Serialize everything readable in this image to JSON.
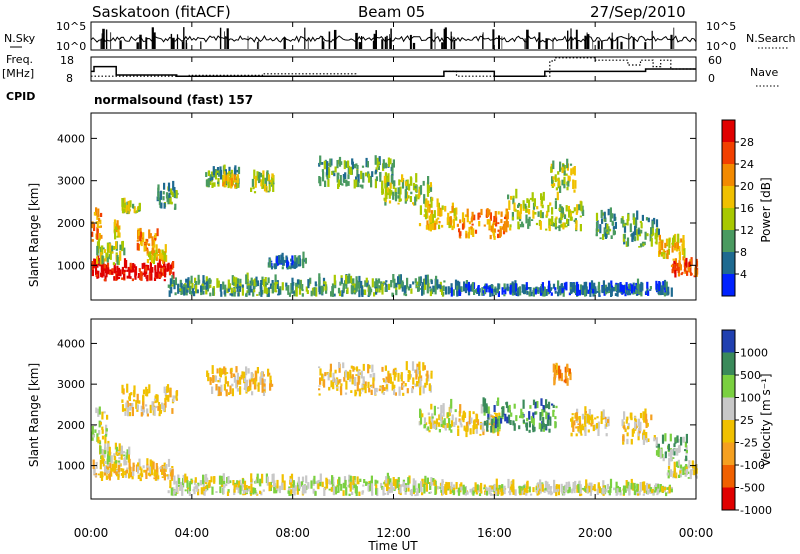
{
  "chart_data": {
    "type": "heatmap",
    "header": {
      "site": "Saskatoon (fitACF)",
      "beam": "Beam 05",
      "date": "27/Sep/2010",
      "cpid_label": "CPID",
      "cpid_text": "normalsound (fast) 157"
    },
    "top_panel": {
      "left_label": "N.Sky",
      "right_label": "N.Search",
      "left_ticks": [
        "10^5",
        "10^0"
      ],
      "right_ticks": [
        "10^5",
        "10^0"
      ]
    },
    "freq_panel": {
      "left_label_1": "Freq.",
      "left_label_2": "[MHz]",
      "right_label": "Nave",
      "left_ticks": [
        "18",
        "8"
      ],
      "right_ticks": [
        "60",
        "0"
      ],
      "freq_steps": [
        [
          0.0,
          12
        ],
        [
          0.12,
          12
        ],
        [
          0.12,
          14
        ],
        [
          1.0,
          14
        ],
        [
          1.0,
          10.5
        ],
        [
          3.4,
          10.5
        ],
        [
          3.4,
          10
        ],
        [
          14.0,
          10
        ],
        [
          14.0,
          12
        ],
        [
          16.0,
          12
        ],
        [
          16.0,
          10
        ],
        [
          18.0,
          10
        ],
        [
          18.0,
          12
        ],
        [
          22.0,
          12
        ],
        [
          22.0,
          13
        ],
        [
          24.0,
          13
        ]
      ],
      "nave_steps": [
        [
          0,
          12
        ],
        [
          3.9,
          12
        ],
        [
          3.9,
          14
        ],
        [
          6.8,
          14
        ],
        [
          6.8,
          18
        ],
        [
          10.5,
          18
        ],
        [
          10.5,
          12
        ],
        [
          14,
          12
        ],
        [
          14,
          24
        ],
        [
          14.5,
          24
        ],
        [
          14.5,
          12
        ],
        [
          18.2,
          12
        ],
        [
          18.2,
          50
        ],
        [
          18.4,
          50
        ],
        [
          18.4,
          58
        ],
        [
          20,
          58
        ],
        [
          20,
          52
        ],
        [
          21.3,
          52
        ],
        [
          21.3,
          40
        ],
        [
          21.8,
          40
        ],
        [
          21.8,
          52
        ],
        [
          22.3,
          52
        ],
        [
          22.3,
          36
        ],
        [
          22.6,
          36
        ],
        [
          22.6,
          52
        ],
        [
          23,
          52
        ],
        [
          23,
          30
        ],
        [
          24,
          30
        ]
      ]
    },
    "power_panel": {
      "ylabel": "Slant Range [km]",
      "y_ticks": [
        1000,
        2000,
        3000,
        4000
      ],
      "ylim": [
        180,
        4600
      ],
      "colorbar_label": "Power [dB]",
      "colorbar_ticks": [
        "28",
        "24",
        "20",
        "16",
        "12",
        "8",
        "4"
      ],
      "colorbar_colors": [
        "#e00000",
        "#f24000",
        "#f38a00",
        "#f0c000",
        "#a8c800",
        "#4a9a60",
        "#1e6a90",
        "#0022ff"
      ],
      "regions": [
        {
          "t": [
            0.0,
            0.5
          ],
          "r": [
            650,
            1000
          ],
          "level": 7
        },
        {
          "t": [
            0.5,
            3.3
          ],
          "r": [
            620,
            950
          ],
          "level": 7
        },
        {
          "t": [
            0.0,
            0.4
          ],
          "r": [
            1500,
            2200
          ],
          "level": 5
        },
        {
          "t": [
            0.9,
            1.1
          ],
          "r": [
            1600,
            1900
          ],
          "level": 4
        },
        {
          "t": [
            1.8,
            2.6
          ],
          "r": [
            1300,
            1700
          ],
          "level": 5
        },
        {
          "t": [
            2.2,
            3.0
          ],
          "r": [
            1000,
            1300
          ],
          "level": 4
        },
        {
          "t": [
            1.2,
            1.9
          ],
          "r": [
            2200,
            2400
          ],
          "level": 3
        },
        {
          "t": [
            2.6,
            3.4
          ],
          "r": [
            2300,
            2800
          ],
          "level": 2
        },
        {
          "t": [
            4.5,
            6.0
          ],
          "r": [
            2800,
            3200
          ],
          "level": 2
        },
        {
          "t": [
            6.3,
            7.2
          ],
          "r": [
            2700,
            3100
          ],
          "level": 3
        },
        {
          "t": [
            5.2,
            5.8
          ],
          "r": [
            2800,
            3000
          ],
          "level": 4
        },
        {
          "t": [
            9.0,
            12.0
          ],
          "r": [
            2800,
            3400
          ],
          "level": 2
        },
        {
          "t": [
            11.5,
            13.5
          ],
          "r": [
            2400,
            3000
          ],
          "level": 3
        },
        {
          "t": [
            13.0,
            14.5
          ],
          "r": [
            1800,
            2400
          ],
          "level": 4
        },
        {
          "t": [
            14.5,
            16.5
          ],
          "r": [
            1600,
            2200
          ],
          "level": 5
        },
        {
          "t": [
            16.5,
            18.5
          ],
          "r": [
            1800,
            2600
          ],
          "level": 3
        },
        {
          "t": [
            18.2,
            19.2
          ],
          "r": [
            2700,
            3400
          ],
          "level": 3
        },
        {
          "t": [
            18.5,
            19.5
          ],
          "r": [
            1800,
            2300
          ],
          "level": 3
        },
        {
          "t": [
            20.0,
            20.8
          ],
          "r": [
            1600,
            2200
          ],
          "level": 2
        },
        {
          "t": [
            21.0,
            22.5
          ],
          "r": [
            1400,
            2100
          ],
          "level": 2
        },
        {
          "t": [
            22.4,
            23.5
          ],
          "r": [
            1100,
            1600
          ],
          "level": 4
        },
        {
          "t": [
            23.0,
            24.0
          ],
          "r": [
            700,
            1000
          ],
          "level": 6
        },
        {
          "t": [
            3.0,
            14.0
          ],
          "r": [
            250,
            600
          ],
          "level": 2
        },
        {
          "t": [
            7.0,
            8.5
          ],
          "r": [
            900,
            1100
          ],
          "level": 1
        },
        {
          "t": [
            14.0,
            23.0
          ],
          "r": [
            250,
            450
          ],
          "level": 1
        },
        {
          "t": [
            0.2,
            1.3
          ],
          "r": [
            1000,
            1400
          ],
          "level": 3
        }
      ]
    },
    "velocity_panel": {
      "ylabel": "Slant Range [km]",
      "y_ticks": [
        1000,
        2000,
        3000,
        4000
      ],
      "ylim": [
        180,
        4600
      ],
      "colorbar_label": "Velocity [m s⁻¹]",
      "colorbar_ticks": [
        "1000",
        "500",
        "100",
        "25",
        "-25",
        "-100",
        "-500",
        "-1000"
      ],
      "colorbar_colors": [
        "#2040b0",
        "#3a8a5a",
        "#7ad040",
        "#c8c8c8",
        "#f0c000",
        "#f5a020",
        "#f06000",
        "#e00000"
      ],
      "regions": [
        {
          "t": [
            0.0,
            0.6
          ],
          "r": [
            1500,
            2300
          ],
          "level": 4
        },
        {
          "t": [
            0.0,
            3.2
          ],
          "r": [
            620,
            980
          ],
          "level": 3
        },
        {
          "t": [
            0.3,
            1.5
          ],
          "r": [
            1000,
            1400
          ],
          "level": 4
        },
        {
          "t": [
            1.2,
            3.4
          ],
          "r": [
            2200,
            2800
          ],
          "level": 3
        },
        {
          "t": [
            4.5,
            7.2
          ],
          "r": [
            2700,
            3300
          ],
          "level": 3
        },
        {
          "t": [
            9.0,
            13.5
          ],
          "r": [
            2700,
            3400
          ],
          "level": 3
        },
        {
          "t": [
            13.0,
            14.5
          ],
          "r": [
            1800,
            2400
          ],
          "level": 4
        },
        {
          "t": [
            14.5,
            16.2
          ],
          "r": [
            1700,
            2300
          ],
          "level": 3
        },
        {
          "t": [
            15.5,
            18.5
          ],
          "r": [
            1800,
            2500
          ],
          "level": 6
        },
        {
          "t": [
            18.3,
            19.0
          ],
          "r": [
            2900,
            3400
          ],
          "level": 2
        },
        {
          "t": [
            19.0,
            20.5
          ],
          "r": [
            1700,
            2300
          ],
          "level": 3
        },
        {
          "t": [
            21.0,
            22.4
          ],
          "r": [
            1500,
            2200
          ],
          "level": 3
        },
        {
          "t": [
            22.4,
            23.6
          ],
          "r": [
            1100,
            1600
          ],
          "level": 5
        },
        {
          "t": [
            22.8,
            24.0
          ],
          "r": [
            650,
            1000
          ],
          "level": 4
        },
        {
          "t": [
            3.0,
            14.0
          ],
          "r": [
            250,
            600
          ],
          "level": 4
        },
        {
          "t": [
            14.0,
            23.0
          ],
          "r": [
            250,
            450
          ],
          "level": 4
        }
      ]
    },
    "xlabel": "Time UT",
    "x_ticks": [
      "00:00",
      "04:00",
      "08:00",
      "12:00",
      "16:00",
      "20:00",
      "00:00"
    ],
    "xlim": [
      0,
      24
    ],
    "grid": false
  }
}
